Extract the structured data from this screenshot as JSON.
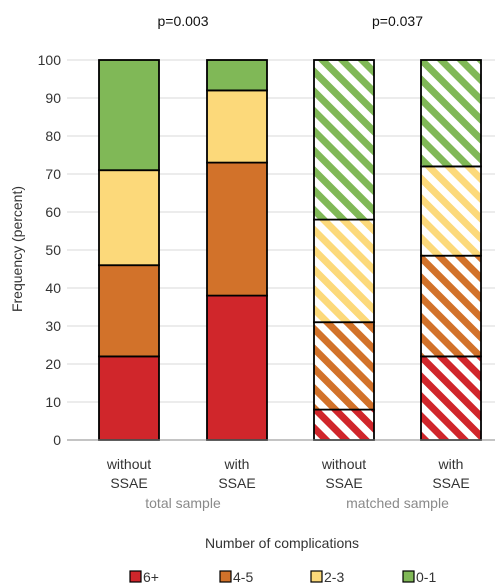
{
  "chart_data": {
    "type": "bar",
    "stacked": true,
    "ylabel": "Frequency (percent)",
    "xlabel": "Number of complications",
    "ylim": [
      0,
      100
    ],
    "yticks": [
      0,
      10,
      20,
      30,
      40,
      50,
      60,
      70,
      80,
      90,
      100
    ],
    "grid": true,
    "legend_position": "bottom",
    "categories": [
      {
        "line1": "without",
        "line2": "SSAE",
        "hatched": false
      },
      {
        "line1": "with",
        "line2": "SSAE",
        "hatched": false
      },
      {
        "line1": "without",
        "line2": "SSAE",
        "hatched": true
      },
      {
        "line1": "with",
        "line2": "SSAE",
        "hatched": true
      }
    ],
    "groups": [
      {
        "label": "total sample",
        "pvalue": "p=0.003",
        "categories": [
          0,
          1
        ]
      },
      {
        "label": "matched sample",
        "pvalue": "p=0.037",
        "categories": [
          2,
          3
        ]
      }
    ],
    "series": [
      {
        "name": "6+",
        "color": "#d0262b",
        "values": [
          22,
          38,
          8,
          22
        ]
      },
      {
        "name": "4-5",
        "color": "#d2722a",
        "values": [
          24,
          35,
          23,
          26.5
        ]
      },
      {
        "name": "2-3",
        "color": "#fcd97a",
        "values": [
          25,
          19,
          27,
          23.5
        ]
      },
      {
        "name": "0-1",
        "color": "#80b857",
        "values": [
          29,
          8,
          42,
          28
        ]
      }
    ]
  }
}
